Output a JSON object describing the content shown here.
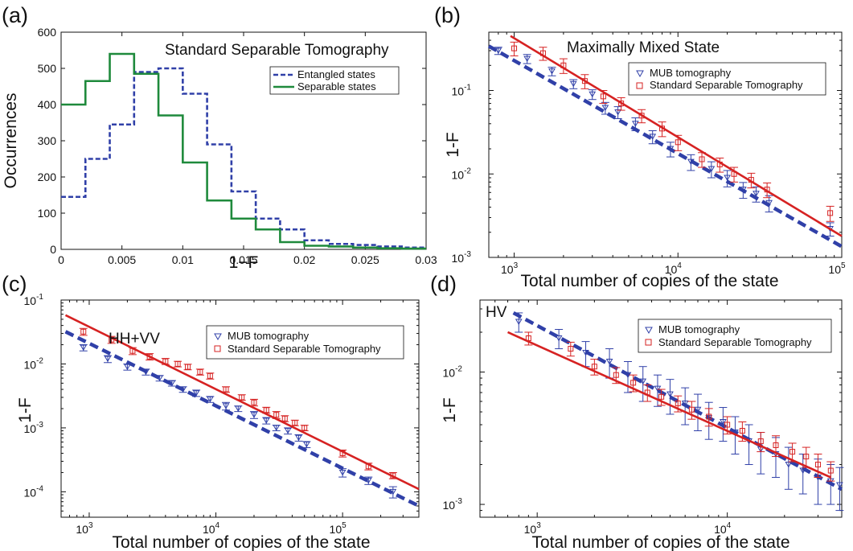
{
  "chart_data": [
    {
      "id": "a",
      "type": "step",
      "panel_label": "(a)",
      "title": "Standard Separable Tomography",
      "xlabel": "1−F",
      "ylabel": "Occurrences",
      "xlim": [
        0,
        0.03
      ],
      "ylim": [
        0,
        600
      ],
      "xticks": [
        "0",
        "0.005",
        "0.01",
        "0.015",
        "0.02",
        "0.025",
        "0.03"
      ],
      "yticks": [
        "0",
        "100",
        "200",
        "300",
        "400",
        "500",
        "600"
      ],
      "bin_width": 0.002,
      "series": [
        {
          "name": "Entangled states",
          "style": "dashed",
          "color": "#3040a8",
          "values": [
            145,
            250,
            345,
            490,
            500,
            430,
            290,
            160,
            85,
            55,
            25,
            15,
            12,
            8,
            5
          ]
        },
        {
          "name": "Separable states",
          "style": "solid",
          "color": "#1f8a3c",
          "values": [
            400,
            465,
            540,
            485,
            370,
            240,
            135,
            85,
            55,
            20,
            10,
            8,
            5,
            3,
            2
          ]
        }
      ]
    },
    {
      "id": "b",
      "type": "loglog",
      "panel_label": "(b)",
      "title": "Maximally Mixed State",
      "xlabel": "Total number of copies of the state",
      "ylabel": "1-F",
      "xlim": [
        700,
        100000
      ],
      "ylim": [
        0.001,
        0.5
      ],
      "xtick_values": [
        1000,
        10000,
        100000
      ],
      "xtick_exps": [
        "3",
        "4",
        "5"
      ],
      "ytick_values": [
        0.001,
        0.01,
        0.1
      ],
      "ytick_exps": [
        "-3",
        "-2",
        "-1"
      ],
      "series": [
        {
          "name": "MUB tomography",
          "marker": "triangle",
          "color": "#3040a8",
          "x": [
            800,
            1200,
            1700,
            2300,
            3000,
            3600,
            4300,
            5500,
            7000,
            9000,
            12000,
            16000,
            20000,
            25000,
            30000,
            36000,
            85000
          ],
          "y": [
            0.3,
            0.24,
            0.17,
            0.12,
            0.09,
            0.062,
            0.055,
            0.04,
            0.028,
            0.02,
            0.014,
            0.0115,
            0.009,
            0.0065,
            0.0058,
            0.0045,
            0.0022
          ],
          "err": [
            0.03,
            0.03,
            0.02,
            0.015,
            0.012,
            0.01,
            0.009,
            0.007,
            0.005,
            0.004,
            0.003,
            0.0025,
            0.002,
            0.0014,
            0.0012,
            0.001,
            0.0004
          ],
          "fit": {
            "x": [
              700,
              100000
            ],
            "y": [
              0.34,
              0.00135
            ],
            "style": "dashed"
          }
        },
        {
          "name": "Standard Separable Tomography",
          "marker": "square",
          "color": "#d62222",
          "x": [
            1000,
            1500,
            2000,
            2700,
            3500,
            4500,
            6000,
            8000,
            10000,
            14000,
            18000,
            22000,
            28000,
            35000,
            85000
          ],
          "y": [
            0.32,
            0.28,
            0.2,
            0.13,
            0.085,
            0.07,
            0.05,
            0.035,
            0.024,
            0.015,
            0.013,
            0.01,
            0.0085,
            0.0065,
            0.0034
          ],
          "err": [
            0.06,
            0.05,
            0.04,
            0.025,
            0.015,
            0.012,
            0.009,
            0.007,
            0.005,
            0.003,
            0.0025,
            0.002,
            0.0017,
            0.0013,
            0.0007
          ],
          "fit": {
            "x": [
              950,
              100000
            ],
            "y": [
              0.45,
              0.0018
            ],
            "style": "solid"
          }
        }
      ]
    },
    {
      "id": "c",
      "type": "loglog",
      "panel_label": "(c)",
      "title": "HH+VV",
      "xlabel": "Total number of copies of the state",
      "ylabel": "1-F",
      "xlim": [
        600,
        400000
      ],
      "ylim": [
        4e-05,
        0.1
      ],
      "xtick_values": [
        1000,
        10000,
        100000
      ],
      "xtick_exps": [
        "3",
        "4",
        "5"
      ],
      "ytick_values": [
        0.0001,
        0.001,
        0.01,
        0.1
      ],
      "ytick_exps": [
        "-4",
        "-3",
        "-2",
        "-1"
      ],
      "series": [
        {
          "name": "MUB tomography",
          "marker": "triangle",
          "color": "#3040a8",
          "x": [
            900,
            1400,
            2000,
            2800,
            3600,
            4500,
            5500,
            7000,
            9000,
            12000,
            15000,
            20000,
            25000,
            30000,
            37000,
            45000,
            52000,
            100000,
            160000,
            250000
          ],
          "y": [
            0.018,
            0.012,
            0.009,
            0.0075,
            0.006,
            0.005,
            0.004,
            0.0035,
            0.0028,
            0.0022,
            0.002,
            0.0016,
            0.0013,
            0.001,
            0.0009,
            0.0007,
            0.00055,
            0.0002,
            0.00015,
            0.0001
          ],
          "err": [
            0.002,
            0.0015,
            0.001,
            0.0008,
            0.0006,
            0.0005,
            0.0004,
            0.0004,
            0.0003,
            0.0003,
            0.0002,
            0.0002,
            0.00015,
            0.0001,
            0.0001,
            8e-05,
            6e-05,
            3e-05,
            2e-05,
            2e-05
          ],
          "fit": {
            "x": [
              650,
              400000
            ],
            "y": [
              0.032,
              6e-05
            ],
            "style": "dashed"
          }
        },
        {
          "name": "Standard Separable Tomography",
          "marker": "square",
          "color": "#d62222",
          "x": [
            900,
            1500,
            2200,
            3000,
            4000,
            5000,
            6000,
            7500,
            9000,
            12000,
            16000,
            20000,
            25000,
            30000,
            35000,
            42000,
            50000,
            100000,
            160000,
            250000
          ],
          "y": [
            0.032,
            0.024,
            0.016,
            0.013,
            0.011,
            0.01,
            0.009,
            0.0075,
            0.0065,
            0.004,
            0.003,
            0.0025,
            0.0019,
            0.0016,
            0.0014,
            0.0012,
            0.001,
            0.0004,
            0.00025,
            0.00018
          ],
          "err": [
            0.004,
            0.003,
            0.002,
            0.0015,
            0.0012,
            0.001,
            0.0009,
            0.0008,
            0.0007,
            0.0004,
            0.0003,
            0.0003,
            0.0002,
            0.0002,
            0.00015,
            0.00012,
            0.0001,
            5e-05,
            3e-05,
            2e-05
          ],
          "fit": {
            "x": [
              650,
              400000
            ],
            "y": [
              0.058,
              0.00011
            ],
            "style": "solid"
          }
        }
      ]
    },
    {
      "id": "d",
      "type": "loglog",
      "panel_label": "(d)",
      "title": "HV",
      "xlabel": "Total number of copies of the state",
      "ylabel": "1-F",
      "xlim": [
        500,
        40000
      ],
      "ylim": [
        0.0008,
        0.035
      ],
      "xtick_values": [
        1000,
        10000
      ],
      "xtick_exps": [
        "3",
        "4"
      ],
      "ytick_values": [
        0.001,
        0.01
      ],
      "ytick_exps": [
        "-3",
        "-2"
      ],
      "series": [
        {
          "name": "MUB tomography",
          "marker": "triangle",
          "color": "#3040a8",
          "x": [
            800,
            1300,
            1800,
            2400,
            3000,
            3600,
            4300,
            5000,
            6000,
            7000,
            8000,
            9500,
            11000,
            13000,
            15000,
            18000,
            21000,
            25000,
            30000,
            35000,
            39000
          ],
          "y": [
            0.024,
            0.018,
            0.014,
            0.012,
            0.0095,
            0.0085,
            0.0075,
            0.0068,
            0.0058,
            0.0052,
            0.0045,
            0.0042,
            0.0035,
            0.003,
            0.0026,
            0.0024,
            0.002,
            0.0018,
            0.0016,
            0.0015,
            0.0014
          ],
          "err": [
            0.004,
            0.003,
            0.003,
            0.003,
            0.0025,
            0.0025,
            0.002,
            0.002,
            0.0018,
            0.0016,
            0.0014,
            0.0012,
            0.0011,
            0.001,
            0.0009,
            0.0008,
            0.0007,
            0.0006,
            0.0006,
            0.0005,
            0.0005
          ],
          "fit": {
            "x": [
              750,
              40000
            ],
            "y": [
              0.028,
              0.0013
            ],
            "style": "dashed"
          }
        },
        {
          "name": "Standard Separable Tomography",
          "marker": "square",
          "color": "#d62222",
          "x": [
            900,
            1500,
            2000,
            2600,
            3200,
            3800,
            4500,
            5500,
            6500,
            8000,
            10000,
            12000,
            15000,
            18000,
            22000,
            26000,
            30000,
            35000
          ],
          "y": [
            0.018,
            0.015,
            0.011,
            0.0095,
            0.0083,
            0.007,
            0.0065,
            0.0058,
            0.0052,
            0.0046,
            0.004,
            0.0036,
            0.003,
            0.0028,
            0.0025,
            0.0023,
            0.002,
            0.0018
          ],
          "err": [
            0.002,
            0.0018,
            0.0015,
            0.0013,
            0.0012,
            0.001,
            0.0009,
            0.0008,
            0.0008,
            0.0007,
            0.0006,
            0.0006,
            0.0005,
            0.0005,
            0.0004,
            0.0004,
            0.0004,
            0.0003
          ],
          "fit": {
            "x": [
              700,
              35000
            ],
            "y": [
              0.02,
              0.0016
            ],
            "style": "solid"
          }
        }
      ]
    }
  ]
}
